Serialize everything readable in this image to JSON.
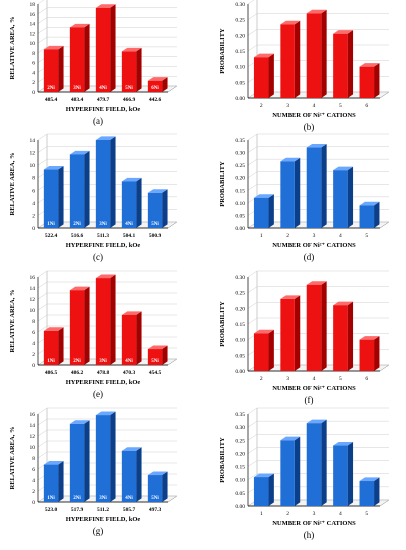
{
  "colors": {
    "red": "#ee1111",
    "red_dark": "#a30000",
    "red_top": "#ff6a6a",
    "blue": "#1f6fd6",
    "blue_dark": "#0c3f8a",
    "blue_top": "#6aa8ff"
  },
  "chart_data": [
    {
      "panel": "(a)",
      "type": "bar",
      "color": "red",
      "ylabel": "RELATIVE AREA, %",
      "xlabel": "HYPERFINE FIELD, kOe",
      "categories": [
        "485.4",
        "483.4",
        "479.7",
        "466.9",
        "442.6"
      ],
      "bar_labels": [
        "2Ni",
        "3Ni",
        "4Ni",
        "5Ni",
        "6Ni"
      ],
      "values": [
        8.7,
        13.2,
        17.2,
        8.3,
        2.3
      ],
      "ylim": [
        0,
        18
      ],
      "yticks": [
        "0",
        "2",
        "4",
        "6",
        "8",
        "10",
        "12",
        "14",
        "16",
        "18"
      ],
      "ytick_values": [
        0,
        2,
        4,
        6,
        8,
        10,
        12,
        14,
        16,
        18
      ]
    },
    {
      "panel": "(b)",
      "type": "bar",
      "color": "red",
      "ylabel": "PROBABILITY",
      "xlabel": "NUMBER OF Ni²⁺ CATIONS",
      "categories": [
        "2",
        "3",
        "4",
        "5",
        "6"
      ],
      "bar_labels": [],
      "values": [
        0.13,
        0.235,
        0.27,
        0.205,
        0.1
      ],
      "ylim": [
        0,
        0.3
      ],
      "yticks": [
        "0.00",
        "0.05",
        "0.10",
        "0.15",
        "0.20",
        "0.25",
        "0.30"
      ],
      "ytick_values": [
        0,
        0.05,
        0.1,
        0.15,
        0.2,
        0.25,
        0.3
      ]
    },
    {
      "panel": "(c)",
      "type": "bar",
      "color": "blue",
      "ylabel": "RELATIVE AREA, %",
      "xlabel": "HYPERFINE FIELD, kOe",
      "categories": [
        "522.4",
        "516.6",
        "511.3",
        "504.1",
        "500.9"
      ],
      "bar_labels": [
        "1Ni",
        "2Ni",
        "3Ni",
        "4Ni",
        "5Ni"
      ],
      "values": [
        9.3,
        11.7,
        14.0,
        7.4,
        5.6
      ],
      "ylim": [
        0,
        14
      ],
      "yticks": [
        "0",
        "2",
        "4",
        "6",
        "8",
        "10",
        "12",
        "14"
      ],
      "ytick_values": [
        0,
        2,
        4,
        6,
        8,
        10,
        12,
        14
      ]
    },
    {
      "panel": "(d)",
      "type": "bar",
      "color": "blue",
      "ylabel": "PROBABILITY",
      "xlabel": "NUMBER OF Ni²⁺ CATIONS",
      "categories": [
        "1",
        "2",
        "3",
        "4",
        "5"
      ],
      "bar_labels": [],
      "values": [
        0.12,
        0.265,
        0.32,
        0.23,
        0.09
      ],
      "ylim": [
        0,
        0.35
      ],
      "yticks": [
        "0.00",
        "0.05",
        "0.10",
        "0.15",
        "0.20",
        "0.25",
        "0.30",
        "0.35"
      ],
      "ytick_values": [
        0,
        0.05,
        0.1,
        0.15,
        0.2,
        0.25,
        0.3,
        0.35
      ]
    },
    {
      "panel": "(e)",
      "type": "bar",
      "color": "red",
      "ylabel": "RELATIVE AREA, %",
      "xlabel": "HYPERFINE FIELD, kOe",
      "categories": [
        "486.5",
        "486.2",
        "478.8",
        "470.3",
        "454.5"
      ],
      "bar_labels": [
        "1Ni",
        "2Ni",
        "3Ni",
        "4Ni",
        "5Ni"
      ],
      "values": [
        6.2,
        13.6,
        15.8,
        9.1,
        2.9
      ],
      "ylim": [
        0,
        16
      ],
      "yticks": [
        "0",
        "2",
        "4",
        "6",
        "8",
        "10",
        "12",
        "14",
        "16"
      ],
      "ytick_values": [
        0,
        2,
        4,
        6,
        8,
        10,
        12,
        14,
        16
      ]
    },
    {
      "panel": "(f)",
      "type": "bar",
      "color": "red",
      "ylabel": "PROBABILITY",
      "xlabel": "NUMBER OF Ni²⁺ CATIONS",
      "categories": [
        "2",
        "3",
        "4",
        "5",
        "6"
      ],
      "bar_labels": [],
      "values": [
        0.12,
        0.23,
        0.275,
        0.21,
        0.1
      ],
      "ylim": [
        0,
        0.3
      ],
      "yticks": [
        "0.00",
        "0.05",
        "0.10",
        "0.15",
        "0.20",
        "0.25",
        "0.30"
      ],
      "ytick_values": [
        0,
        0.05,
        0.1,
        0.15,
        0.2,
        0.25,
        0.3
      ]
    },
    {
      "panel": "(g)",
      "type": "bar",
      "color": "blue",
      "ylabel": "RELATIVE AREA, %",
      "xlabel": "HYPERFINE FIELD, kOe",
      "categories": [
        "523.0",
        "517.9",
        "511.2",
        "505.7",
        "497.3"
      ],
      "bar_labels": [
        "1Ni",
        "2Ni",
        "3Ni",
        "4Ni",
        "5Ni"
      ],
      "values": [
        6.8,
        14.2,
        15.8,
        9.3,
        4.9
      ],
      "ylim": [
        0,
        16
      ],
      "yticks": [
        "0",
        "2",
        "4",
        "6",
        "8",
        "10",
        "12",
        "14",
        "16"
      ],
      "ytick_values": [
        0,
        2,
        4,
        6,
        8,
        10,
        12,
        14,
        16
      ]
    },
    {
      "panel": "(h)",
      "type": "bar",
      "color": "blue",
      "ylabel": "PROBABILITY",
      "xlabel": "NUMBER OF Ni²⁺ CATIONS",
      "categories": [
        "1",
        "2",
        "3",
        "4",
        "5"
      ],
      "bar_labels": [],
      "values": [
        0.11,
        0.25,
        0.315,
        0.23,
        0.095
      ],
      "ylim": [
        0,
        0.35
      ],
      "yticks": [
        "0.00",
        "0.05",
        "0.10",
        "0.15",
        "0.20",
        "0.25",
        "0.30",
        "0.35"
      ],
      "ytick_values": [
        0,
        0.05,
        0.1,
        0.15,
        0.2,
        0.25,
        0.3,
        0.35
      ]
    }
  ]
}
